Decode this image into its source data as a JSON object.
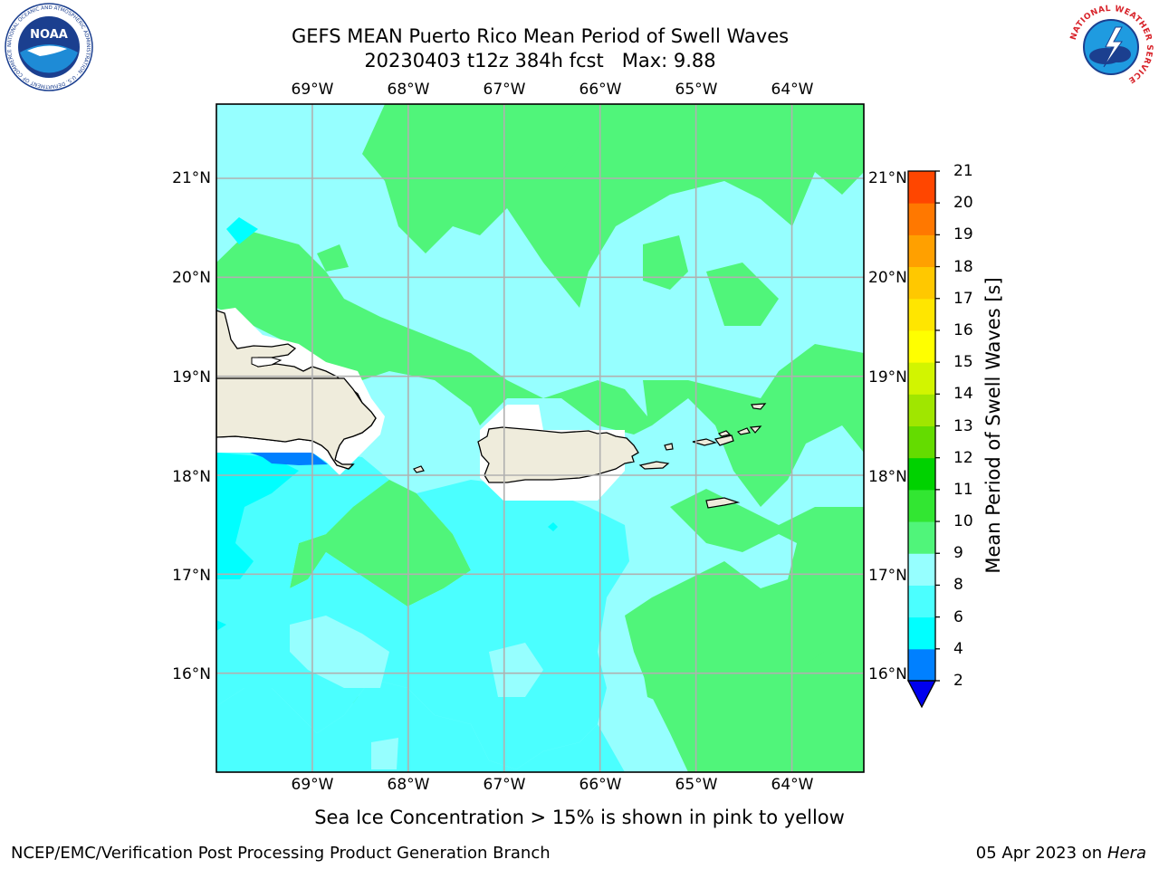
{
  "header": {
    "title_line1": "GEFS MEAN Puerto Rico Mean Period of Swell Waves",
    "title_line2": "20230403 t12z 384h fcst   Max: 9.88"
  },
  "axes": {
    "lon_labels": [
      "69°W",
      "68°W",
      "67°W",
      "66°W",
      "65°W",
      "64°W"
    ],
    "lat_labels": [
      "21°N",
      "20°N",
      "19°N",
      "18°N",
      "17°N",
      "16°N"
    ]
  },
  "map": {
    "lon_range": [
      -70.0,
      -63.25
    ],
    "lat_range": [
      15.0,
      21.75
    ],
    "land_color": "#efecdc",
    "gridline_color": "#b0b0b0"
  },
  "colorbar": {
    "title": "Mean Period of Swell Waves [s]",
    "tick_labels": [
      "21",
      "20",
      "19",
      "18",
      "17",
      "16",
      "15",
      "14",
      "13",
      "12",
      "11",
      "10",
      "9",
      "8",
      "6",
      "4",
      "2"
    ],
    "levels": [
      2,
      4,
      6,
      8,
      9,
      10,
      11,
      12,
      13,
      14,
      15,
      16,
      17,
      18,
      19,
      20,
      21
    ],
    "colors": [
      "#0080ff",
      "#00ffff",
      "#4bffff",
      "#96ffff",
      "#50f57a",
      "#32e632",
      "#00d200",
      "#64dc00",
      "#a0e600",
      "#d2f500",
      "#ffff00",
      "#ffe600",
      "#ffc800",
      "#ffa000",
      "#ff7800",
      "#ff4600",
      "#ff0000"
    ],
    "under_color": "#0000ee"
  },
  "footer": {
    "note": "Sea Ice Concentration > 15% is shown in pink to yellow",
    "left_credit": "NCEP/EMC/Verification Post Processing Product Generation Branch",
    "date": "05 Apr 2023 on",
    "host": "Hera"
  },
  "logos": {
    "noaa_text": "NOAA",
    "noaa_ring_text": "NATIONAL OCEANIC AND ATMOSPHERIC ADMINISTRATION · U.S. DEPARTMENT OF COMMERCE ·",
    "nws_ring_text": "NATIONAL WEATHER SERVICE"
  }
}
